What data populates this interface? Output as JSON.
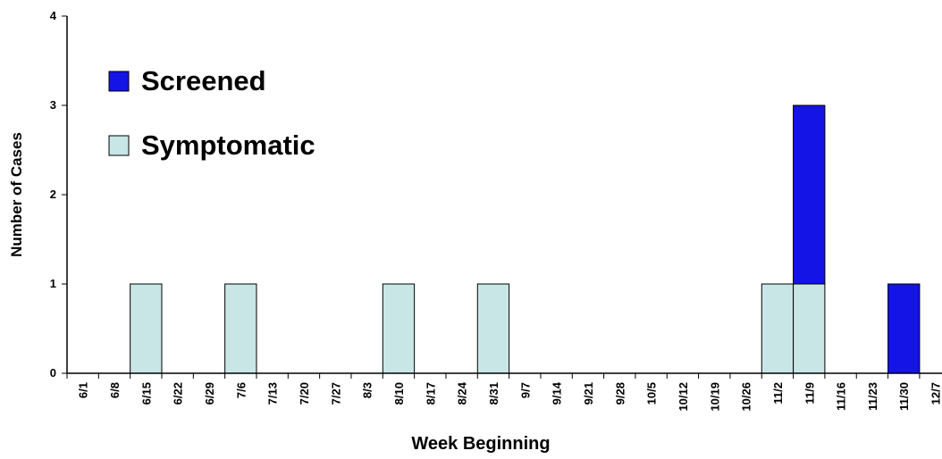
{
  "chart_data": {
    "type": "stacked_bar",
    "x_label": "Week Beginning",
    "y_label": "Number of Cases",
    "categories": [
      "6/1",
      "6/8",
      "6/15",
      "6/22",
      "6/29",
      "7/6",
      "7/13",
      "7/20",
      "7/27",
      "8/3",
      "8/10",
      "8/17",
      "8/24",
      "8/31",
      "9/7",
      "9/14",
      "9/21",
      "9/28",
      "10/5",
      "10/12",
      "10/19",
      "10/26",
      "11/2",
      "11/9",
      "11/16",
      "11/23",
      "11/30",
      "12/7"
    ],
    "series": [
      {
        "name": "Screened",
        "color": "#1414e6",
        "values": [
          0,
          0,
          0,
          0,
          0,
          0,
          0,
          0,
          0,
          0,
          0,
          0,
          0,
          0,
          0,
          0,
          0,
          0,
          0,
          0,
          0,
          0,
          0,
          2,
          0,
          0,
          1,
          0
        ]
      },
      {
        "name": "Symptomatic",
        "color": "#c8e6e6",
        "values": [
          0,
          0,
          1,
          0,
          0,
          1,
          0,
          0,
          0,
          0,
          1,
          0,
          0,
          1,
          0,
          0,
          0,
          0,
          0,
          0,
          0,
          0,
          1,
          1,
          0,
          0,
          0,
          0
        ]
      }
    ],
    "ylim": [
      0,
      4
    ],
    "yticks": [
      0,
      1,
      2,
      3,
      4
    ],
    "legend": "upper left"
  }
}
